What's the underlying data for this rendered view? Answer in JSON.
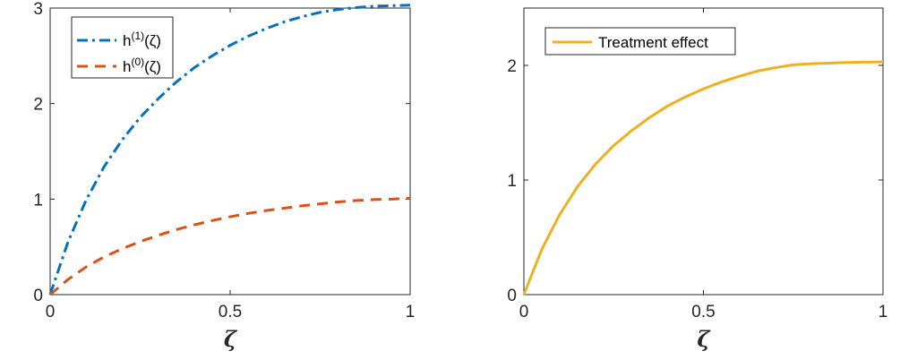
{
  "chart_data": [
    {
      "type": "line",
      "xlabel": "ζ",
      "ylabel": "",
      "xlim": [
        0,
        1
      ],
      "ylim": [
        0,
        3
      ],
      "xticks": [
        "0",
        "0.5",
        "1"
      ],
      "yticks": [
        "0",
        "1",
        "2",
        "3"
      ],
      "grid": false,
      "legend_position": "top-left",
      "series": [
        {
          "name": "h(1)(ζ)",
          "label_base": "h",
          "label_sup": "(1)",
          "label_arg": "(ζ)",
          "color": "#0072BD",
          "line_style": "dash-dot",
          "x": [
            0,
            0.05,
            0.1,
            0.15,
            0.2,
            0.25,
            0.3,
            0.35,
            0.4,
            0.45,
            0.5,
            0.55,
            0.6,
            0.65,
            0.7,
            0.75,
            0.8,
            0.85,
            0.9,
            0.95,
            1.0
          ],
          "y": [
            0,
            0.555,
            0.99,
            1.34,
            1.62,
            1.855,
            2.05,
            2.225,
            2.375,
            2.5,
            2.61,
            2.705,
            2.785,
            2.855,
            2.91,
            2.955,
            2.985,
            3.005,
            3.02,
            3.025,
            3.03
          ]
        },
        {
          "name": "h(0)(ζ)",
          "label_base": "h",
          "label_sup": "(0)",
          "label_arg": "(ζ)",
          "color": "#D95319",
          "line_style": "dashed",
          "x": [
            0,
            0.05,
            0.1,
            0.15,
            0.2,
            0.25,
            0.3,
            0.35,
            0.4,
            0.45,
            0.5,
            0.55,
            0.6,
            0.65,
            0.7,
            0.75,
            0.8,
            0.85,
            0.9,
            0.95,
            1.0
          ],
          "y": [
            0,
            0.16,
            0.29,
            0.395,
            0.48,
            0.555,
            0.62,
            0.68,
            0.73,
            0.775,
            0.815,
            0.85,
            0.88,
            0.905,
            0.93,
            0.95,
            0.97,
            0.985,
            0.995,
            1.0,
            1.01
          ]
        }
      ]
    },
    {
      "type": "line",
      "xlabel": "ζ",
      "ylabel": "",
      "xlim": [
        0,
        1
      ],
      "ylim": [
        0,
        2.5
      ],
      "xticks": [
        "0",
        "0.5",
        "1"
      ],
      "yticks": [
        "0",
        "1",
        "2"
      ],
      "grid": false,
      "legend_position": "top-left",
      "series": [
        {
          "name": "Treatment effect",
          "color": "#EDB120",
          "line_style": "solid",
          "x": [
            0,
            0.05,
            0.1,
            0.15,
            0.2,
            0.25,
            0.3,
            0.35,
            0.4,
            0.45,
            0.5,
            0.55,
            0.6,
            0.65,
            0.7,
            0.75,
            0.8,
            0.85,
            0.9,
            0.95,
            1.0
          ],
          "y": [
            0,
            0.395,
            0.7,
            0.945,
            1.14,
            1.3,
            1.43,
            1.545,
            1.645,
            1.725,
            1.795,
            1.855,
            1.905,
            1.95,
            1.98,
            2.005,
            2.015,
            2.02,
            2.025,
            2.028,
            2.03
          ]
        }
      ]
    }
  ]
}
